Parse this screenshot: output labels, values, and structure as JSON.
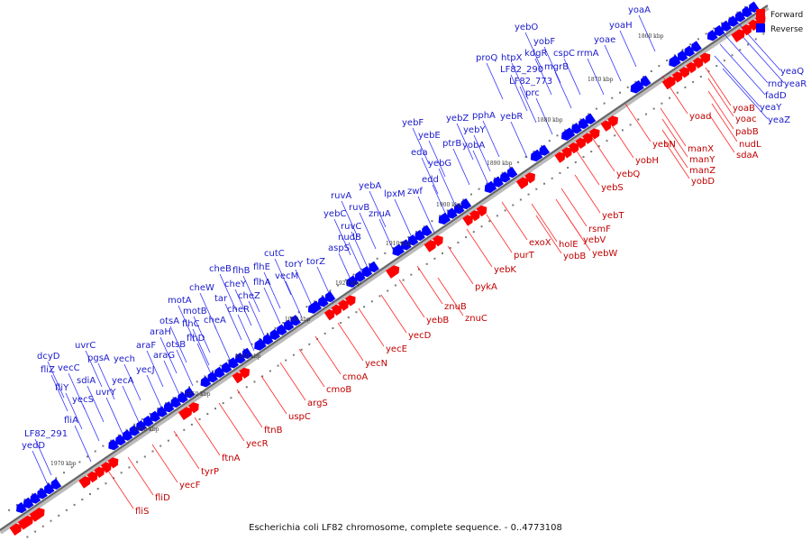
{
  "caption": "Escherichia coli LF82 chromosome, complete sequence. - 0..4773108",
  "legend": [
    {
      "label": "Forward",
      "color": "#ff0000"
    },
    {
      "label": "Reverse",
      "color": "#0000ff"
    }
  ],
  "colors": {
    "forward": "#ff0000",
    "reverse": "#0000ff",
    "leader_forward": "#ff2a2a",
    "leader_reverse": "#3030ff",
    "backbone": "#666666"
  },
  "kbp_ticks": [
    "1860 kbp",
    "1870 kbp",
    "1880 kbp",
    "1890 kbp",
    "1900 kbp",
    "1910 kbp",
    "1920 kbp",
    "1930 kbp",
    "1940 kbp",
    "1950 kbp",
    "1960 kbp",
    "1970 kbp"
  ],
  "reverse_genes": [
    "yoaA",
    "yoaH",
    "yoae",
    "yebO",
    "yobF",
    "proQ",
    "htpX",
    "kdgR",
    "cspC",
    "rrmA",
    "LF82_290",
    "mgrB",
    "LF82_773",
    "prc",
    "yebF",
    "yebZ",
    "pphA",
    "yebR",
    "yebE",
    "yebY",
    "ptrB",
    "yobA",
    "eda",
    "yebG",
    "edd",
    "zwf",
    "yebA",
    "lpxM",
    "ruvA",
    "yebC",
    "ruvB",
    "znuA",
    "ruvC",
    "nudB",
    "aspS",
    "cutC",
    "torY",
    "torZ",
    "cheB",
    "flhB",
    "flhE",
    "vecM",
    "cheY",
    "flhA",
    "cheW",
    "tar",
    "cheZ",
    "motA",
    "cheR",
    "motB",
    "otsA",
    "flhC",
    "cheA",
    "araH",
    "flhD",
    "araF",
    "otsB",
    "araG",
    "uvrC",
    "pgsA",
    "yech",
    "dcyD",
    "vecC",
    "yecA",
    "fliZ",
    "sdiA",
    "yecJ",
    "fliY",
    "uvrY",
    "yecS",
    "fliA",
    "LF82_291",
    "yedD",
    "yeaQ",
    "rnd",
    "yeaR",
    "fadD",
    "yeaY",
    "yeaZ"
  ],
  "forward_genes": [
    "yoaB",
    "yoad",
    "yoac",
    "pabB",
    "nudL",
    "sdaA",
    "yebN",
    "manX",
    "manY",
    "manZ",
    "yobD",
    "yobH",
    "yebQ",
    "yebS",
    "yebT",
    "rsmF",
    "yebV",
    "holE",
    "yebW",
    "exoX",
    "yobB",
    "purT",
    "yebK",
    "pykA",
    "znuB",
    "yebB",
    "znuC",
    "yecD",
    "yecE",
    "yecN",
    "cmoA",
    "cmoB",
    "argS",
    "uspC",
    "ftnB",
    "yecR",
    "ftnA",
    "tyrP",
    "yecF",
    "fliD",
    "fliS"
  ]
}
